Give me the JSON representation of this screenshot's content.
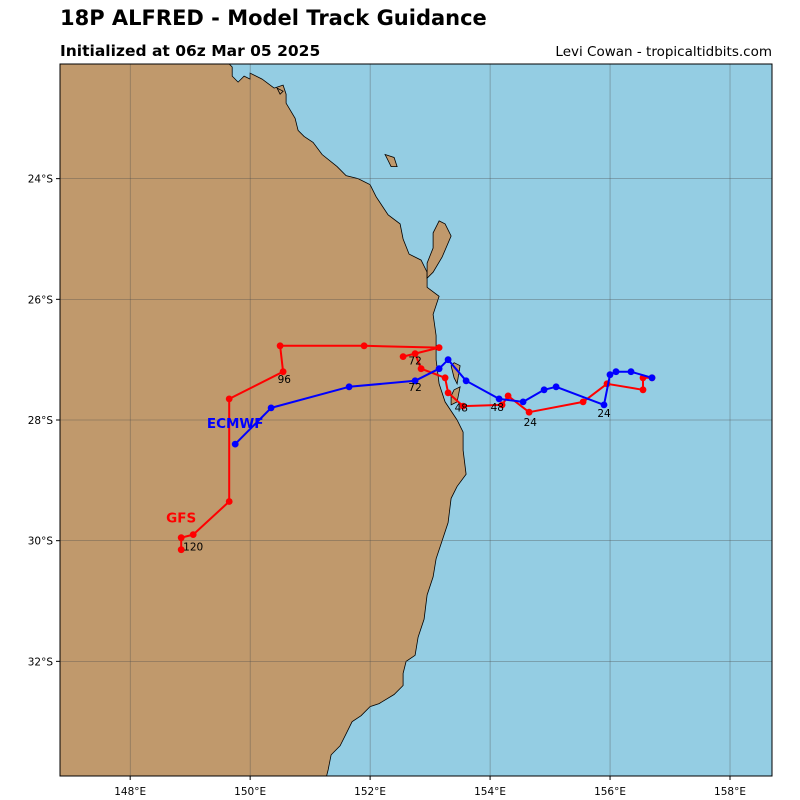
{
  "header": {
    "title": "18P ALFRED - Model Track Guidance",
    "subtitle": "Initialized at 06z Mar 05 2025",
    "credit": "Levi Cowan - tropicaltidbits.com"
  },
  "colors": {
    "ocean": "#94cde3",
    "land": "#c0996c",
    "coastline": "#000000",
    "grid": "#4d4d4d",
    "gfs": "#ff0000",
    "ecmwf": "#0000ff"
  },
  "map": {
    "lon_range": [
      146.83,
      158.7
    ],
    "lat_range": [
      -33.9,
      -22.1
    ],
    "lon_ticks": [
      {
        "value": 148,
        "label": "148°E"
      },
      {
        "value": 150,
        "label": "150°E"
      },
      {
        "value": 152,
        "label": "152°E"
      },
      {
        "value": 154,
        "label": "154°E"
      },
      {
        "value": 156,
        "label": "156°E"
      },
      {
        "value": 158,
        "label": "158°E"
      }
    ],
    "lat_ticks": [
      {
        "value": -24,
        "label": "24°S"
      },
      {
        "value": -26,
        "label": "26°S"
      },
      {
        "value": -28,
        "label": "28°S"
      },
      {
        "value": -30,
        "label": "30°S"
      },
      {
        "value": -32,
        "label": "32°S"
      }
    ],
    "grid": true
  },
  "coastline": [
    [
      149.6,
      -22.05
    ],
    [
      149.7,
      -22.15
    ],
    [
      149.7,
      -22.3
    ],
    [
      149.8,
      -22.4
    ],
    [
      149.9,
      -22.3
    ],
    [
      150.0,
      -22.35
    ],
    [
      150.0,
      -22.25
    ],
    [
      150.2,
      -22.35
    ],
    [
      150.4,
      -22.5
    ],
    [
      150.55,
      -22.45
    ],
    [
      150.6,
      -22.6
    ],
    [
      150.6,
      -22.75
    ],
    [
      150.75,
      -23.0
    ],
    [
      150.8,
      -23.2
    ],
    [
      150.9,
      -23.3
    ],
    [
      151.05,
      -23.4
    ],
    [
      151.2,
      -23.6
    ],
    [
      151.45,
      -23.8
    ],
    [
      151.6,
      -23.95
    ],
    [
      151.8,
      -24.0
    ],
    [
      152.0,
      -24.1
    ],
    [
      152.1,
      -24.3
    ],
    [
      152.3,
      -24.6
    ],
    [
      152.5,
      -24.75
    ],
    [
      152.55,
      -25.0
    ],
    [
      152.65,
      -25.25
    ],
    [
      152.85,
      -25.35
    ],
    [
      152.95,
      -25.55
    ],
    [
      152.95,
      -25.8
    ],
    [
      153.15,
      -25.95
    ],
    [
      153.05,
      -26.25
    ],
    [
      153.1,
      -26.6
    ],
    [
      153.1,
      -27.0
    ],
    [
      153.15,
      -27.4
    ],
    [
      153.25,
      -27.7
    ],
    [
      153.45,
      -28.0
    ],
    [
      153.55,
      -28.2
    ],
    [
      153.55,
      -28.5
    ],
    [
      153.6,
      -28.9
    ],
    [
      153.45,
      -29.1
    ],
    [
      153.35,
      -29.3
    ],
    [
      153.3,
      -29.7
    ],
    [
      153.2,
      -30.0
    ],
    [
      153.1,
      -30.3
    ],
    [
      153.05,
      -30.6
    ],
    [
      152.95,
      -30.9
    ],
    [
      152.9,
      -31.3
    ],
    [
      152.8,
      -31.6
    ],
    [
      152.75,
      -31.9
    ],
    [
      152.6,
      -32.0
    ],
    [
      152.55,
      -32.2
    ],
    [
      152.55,
      -32.4
    ],
    [
      152.4,
      -32.55
    ],
    [
      152.15,
      -32.7
    ],
    [
      152.0,
      -32.75
    ],
    [
      151.85,
      -32.9
    ],
    [
      151.7,
      -33.0
    ],
    [
      151.6,
      -33.2
    ],
    [
      151.5,
      -33.4
    ],
    [
      151.35,
      -33.55
    ],
    [
      151.3,
      -33.8
    ],
    [
      151.25,
      -34.0
    ],
    [
      151.1,
      -34.1
    ]
  ],
  "islands": [
    [
      [
        152.25,
        -23.6
      ],
      [
        152.4,
        -23.65
      ],
      [
        152.45,
        -23.8
      ],
      [
        152.35,
        -23.8
      ],
      [
        152.3,
        -23.7
      ]
    ],
    [
      [
        150.45,
        -22.5
      ],
      [
        150.55,
        -22.55
      ],
      [
        150.5,
        -22.6
      ]
    ],
    [
      [
        153.15,
        -24.7
      ],
      [
        153.25,
        -24.75
      ],
      [
        153.35,
        -24.95
      ],
      [
        153.2,
        -25.3
      ],
      [
        153.05,
        -25.55
      ],
      [
        152.95,
        -25.65
      ],
      [
        152.95,
        -25.4
      ],
      [
        153.05,
        -25.15
      ],
      [
        153.05,
        -24.9
      ],
      [
        153.1,
        -24.8
      ]
    ],
    [
      [
        153.4,
        -27.05
      ],
      [
        153.5,
        -27.1
      ],
      [
        153.45,
        -27.4
      ],
      [
        153.4,
        -27.3
      ],
      [
        153.35,
        -27.1
      ]
    ],
    [
      [
        153.4,
        -27.5
      ],
      [
        153.5,
        -27.45
      ],
      [
        153.45,
        -27.7
      ],
      [
        153.35,
        -27.75
      ],
      [
        153.35,
        -27.6
      ]
    ]
  ],
  "chart_data": {
    "type": "line",
    "title": "18P ALFRED - Model Track Guidance",
    "series": [
      {
        "name": "GFS",
        "color": "#ff0000",
        "points": [
          [
            156.7,
            -27.3
          ],
          [
            156.55,
            -27.3
          ],
          [
            156.55,
            -27.5
          ],
          [
            155.95,
            -27.4
          ],
          [
            155.55,
            -27.7
          ],
          [
            154.65,
            -27.87
          ],
          [
            154.3,
            -27.6
          ],
          [
            154.2,
            -27.75
          ],
          [
            153.55,
            -27.77
          ],
          [
            153.3,
            -27.55
          ],
          [
            153.25,
            -27.3
          ],
          [
            152.85,
            -27.15
          ],
          [
            152.75,
            -26.9
          ],
          [
            152.55,
            -26.95
          ],
          [
            153.15,
            -26.8
          ],
          [
            151.9,
            -26.77
          ],
          [
            150.5,
            -26.77
          ],
          [
            150.55,
            -27.2
          ],
          [
            149.65,
            -27.65
          ],
          [
            149.65,
            -29.35
          ],
          [
            149.05,
            -29.9
          ],
          [
            148.85,
            -29.95
          ],
          [
            148.85,
            -30.15
          ]
        ],
        "hour_labels": [
          {
            "text": "24",
            "lon": 154.67,
            "lat": -28.1
          },
          {
            "text": "48",
            "lon": 153.52,
            "lat": -27.86
          },
          {
            "text": "72",
            "lon": 152.75,
            "lat": -27.08
          },
          {
            "text": "96",
            "lon": 150.57,
            "lat": -27.39
          },
          {
            "text": "120",
            "lon": 149.05,
            "lat": -30.16
          }
        ],
        "model_label": {
          "text": "GFS",
          "lon": 148.85,
          "lat": -29.7
        }
      },
      {
        "name": "ECMWF",
        "color": "#0000ff",
        "points": [
          [
            156.7,
            -27.3
          ],
          [
            156.35,
            -27.2
          ],
          [
            156.1,
            -27.2
          ],
          [
            156.0,
            -27.25
          ],
          [
            155.9,
            -27.75
          ],
          [
            155.1,
            -27.45
          ],
          [
            154.9,
            -27.5
          ],
          [
            154.55,
            -27.7
          ],
          [
            154.15,
            -27.65
          ],
          [
            153.6,
            -27.35
          ],
          [
            153.3,
            -27.0
          ],
          [
            153.15,
            -27.15
          ],
          [
            152.75,
            -27.35
          ],
          [
            151.65,
            -27.45
          ],
          [
            150.35,
            -27.8
          ],
          [
            149.75,
            -28.4
          ]
        ],
        "hour_labels": [
          {
            "text": "24",
            "lon": 155.9,
            "lat": -27.95
          },
          {
            "text": "48",
            "lon": 154.12,
            "lat": -27.85
          },
          {
            "text": "72",
            "lon": 152.75,
            "lat": -27.52
          }
        ],
        "model_label": {
          "text": "ECMWF",
          "lon": 149.75,
          "lat": -28.13
        }
      }
    ]
  }
}
